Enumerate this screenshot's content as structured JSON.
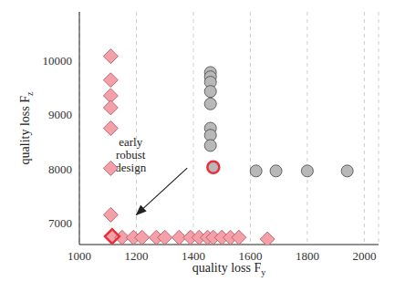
{
  "chart_data": {
    "type": "scatter",
    "xlabel": "quality loss Fy",
    "ylabel": "quality loss Fz",
    "xlim": [
      1000,
      2050
    ],
    "ylim": [
      6600,
      10900
    ],
    "xticks": [
      1000,
      1200,
      1400,
      1600,
      1800,
      2000
    ],
    "yticks": [
      7000,
      8000,
      9000,
      10000
    ],
    "grid": true,
    "series": [
      {
        "color": "#f4a0a8",
        "marker": "diamond",
        "x": [
          1110,
          1110,
          1110,
          1110,
          1110,
          1110,
          1110,
          1115,
          1150,
          1190,
          1220,
          1270,
          1300,
          1350,
          1390,
          1420,
          1450,
          1470,
          1500,
          1530,
          1560,
          1660
        ],
        "values": [
          10080,
          9640,
          9350,
          9130,
          8750,
          8010,
          7150,
          6750,
          6730,
          6730,
          6730,
          6730,
          6730,
          6730,
          6730,
          6730,
          6730,
          6730,
          6730,
          6730,
          6730,
          6700
        ]
      },
      {
        "color": "#b8b8b8",
        "marker": "circle",
        "x": [
          1460,
          1460,
          1460,
          1460,
          1460,
          1460,
          1460,
          1460,
          1470,
          1620,
          1690,
          1800,
          1940
        ],
        "values": [
          9780,
          9700,
          9600,
          9430,
          9200,
          8750,
          8620,
          8430,
          8030,
          7960,
          7960,
          7960,
          7960
        ]
      },
      {
        "color": "#e8303c",
        "marker": "diamond-outline",
        "x": [
          1115
        ],
        "values": [
          6750
        ]
      },
      {
        "color": "#e8303c",
        "marker": "circle-outline",
        "x": [
          1470
        ],
        "values": [
          8030
        ]
      }
    ],
    "annotations": [
      {
        "text": "early robust design",
        "xy": [
          1200,
          7150
        ],
        "xytext": [
          1180,
          8250
        ]
      }
    ]
  }
}
